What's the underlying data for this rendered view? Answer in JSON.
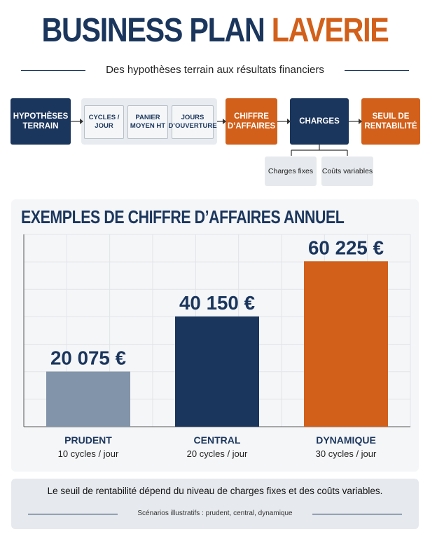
{
  "header": {
    "title_part1": "BUSINESS PLAN",
    "title_part2": "LAVERIE",
    "subtitle": "Des hypothèses terrain aux résultats financiers"
  },
  "flow": {
    "hypotheses": "HYPOTHÈSES TERRAIN",
    "inputs": [
      "CYCLES / JOUR",
      "PANIER MOYEN HT",
      "JOURS D’OUVERTURE"
    ],
    "ca": "CHIFFRE D’AFFAIRES",
    "charges": "CHARGES",
    "seuil": "SEUIL DE RENTABILITÉ",
    "charges_fixes": "Charges fixes",
    "couts_variables": "Coûts variables"
  },
  "chart_data": {
    "type": "bar",
    "title": "EXEMPLES DE CHIFFRE D’AFFAIRES ANNUEL",
    "categories": [
      "PRUDENT",
      "CENTRAL",
      "DYNAMIQUE"
    ],
    "sublabels": [
      "10 cycles / jour",
      "20 cycles / jour",
      "30 cycles / jour"
    ],
    "values": [
      20075,
      40150,
      60225
    ],
    "value_labels": [
      "20 075 €",
      "40 150 €",
      "60 225 €"
    ],
    "colors": [
      "#8294aa",
      "#1b365d",
      "#d2601a"
    ],
    "ylim": [
      0,
      70000
    ],
    "grid": true,
    "xlabel": "",
    "ylabel": ""
  },
  "footer": {
    "main": "Le seuil de rentabilité dépend du niveau de charges fixes et des coûts variables.",
    "note": "Scénarios illustratifs : prudent, central, dynamique"
  }
}
